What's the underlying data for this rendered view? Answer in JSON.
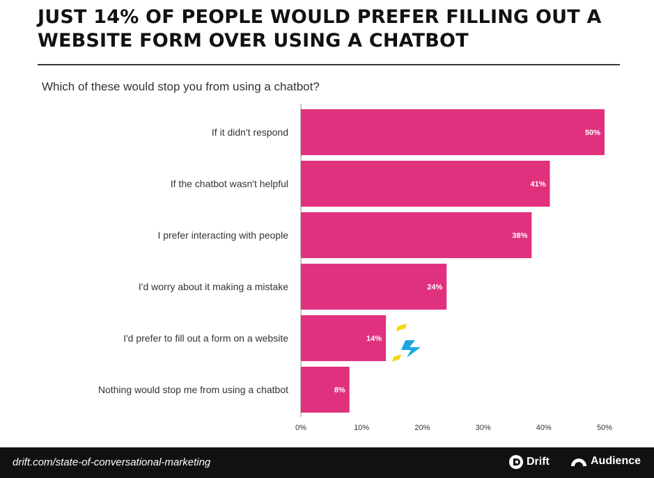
{
  "title": "JUST 14% OF PEOPLE WOULD PREFER FILLING OUT A WEBSITE FORM OVER USING A CHATBOT",
  "chart_data": {
    "type": "bar",
    "orientation": "horizontal",
    "title": "Which of these would stop you from using a chatbot?",
    "categories": [
      "If it didn't respond",
      "If the chatbot wasn't helpful",
      "I prefer interacting with people",
      "I'd worry about it making a mistake",
      "I'd prefer to fill out a form on a website",
      "Nothing would stop me from using a chatbot"
    ],
    "values": [
      50,
      41,
      38,
      24,
      14,
      8
    ],
    "data_labels": [
      "50%",
      "41%",
      "38%",
      "24%",
      "14%",
      "8%"
    ],
    "xlim": [
      0,
      50
    ],
    "xticks": [
      "0%",
      "10%",
      "20%",
      "30%",
      "40%",
      "50%"
    ],
    "bar_color": "#e0317f",
    "grid": false
  },
  "footer": {
    "url": "drift.com/state-of-conversational-marketing",
    "logo_drift": "Drift",
    "logo_audience": "Audience"
  },
  "colors": {
    "bar": "#e0317f",
    "footer_bg": "#111111",
    "accent_yellow": "#f5d80c",
    "accent_blue": "#1ea7e0"
  }
}
